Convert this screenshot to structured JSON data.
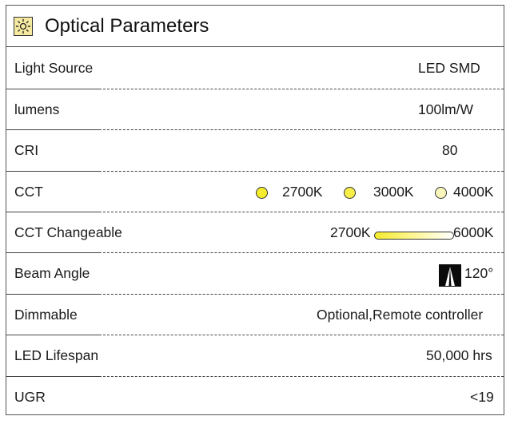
{
  "header": {
    "title": "Optical Parameters",
    "icon": "sun-icon"
  },
  "rows": [
    {
      "label": "Light Source",
      "value": "LED SMD"
    },
    {
      "label": "lumens",
      "value": "100lm/W"
    },
    {
      "label": "CRI",
      "value": "80"
    },
    {
      "label": "CCT",
      "options": [
        {
          "label": "2700K",
          "color": "#f4ec2c"
        },
        {
          "label": "3000K",
          "color": "#f7ee4a"
        },
        {
          "label": "4000K",
          "color": "#faf5bb"
        }
      ]
    },
    {
      "label": "CCT Changeable",
      "min": "2700K",
      "max": "6000K"
    },
    {
      "label": "Beam Angle",
      "value": "120°",
      "icon": "beam-angle-icon"
    },
    {
      "label": "Dimmable",
      "value": "Optional,Remote controller"
    },
    {
      "label": "LED Lifespan",
      "value": "50,000 hrs"
    },
    {
      "label": "UGR",
      "value": "<19"
    }
  ],
  "colors": {
    "border": "#444444",
    "warm_yellow": "#f4ec2c",
    "icon_bg": "#f5eaa0"
  }
}
